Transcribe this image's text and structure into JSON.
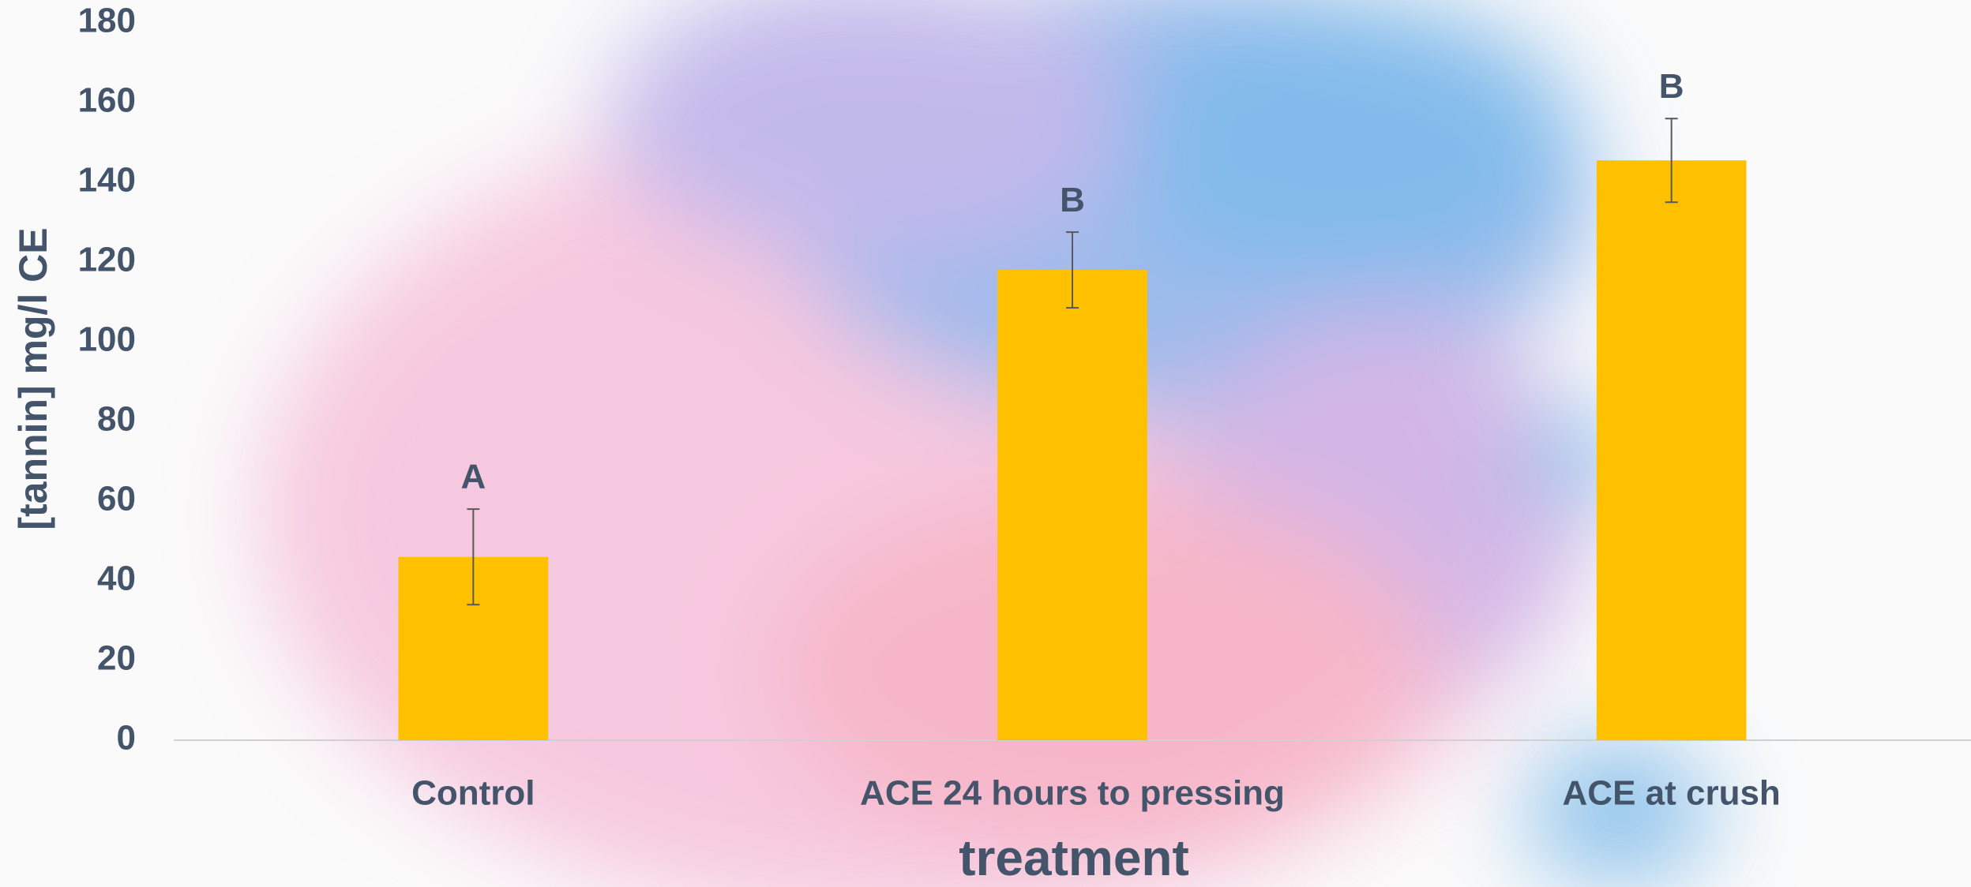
{
  "chart_data": {
    "type": "bar",
    "y_label": "[tannin] mg/l CE",
    "x_label": "treatment",
    "categories": [
      "Control",
      "ACE 24 hours to pressing",
      "ACE at crush"
    ],
    "values": [
      46,
      118,
      145.5
    ],
    "errors": [
      12,
      9.5,
      10.5
    ],
    "annotations": [
      "A",
      "B",
      "B"
    ],
    "color": "#ffc000",
    "ylim": [
      0,
      180
    ],
    "yticks": [
      0,
      20,
      40,
      60,
      80,
      100,
      120,
      140,
      160,
      180
    ],
    "grid": false
  }
}
